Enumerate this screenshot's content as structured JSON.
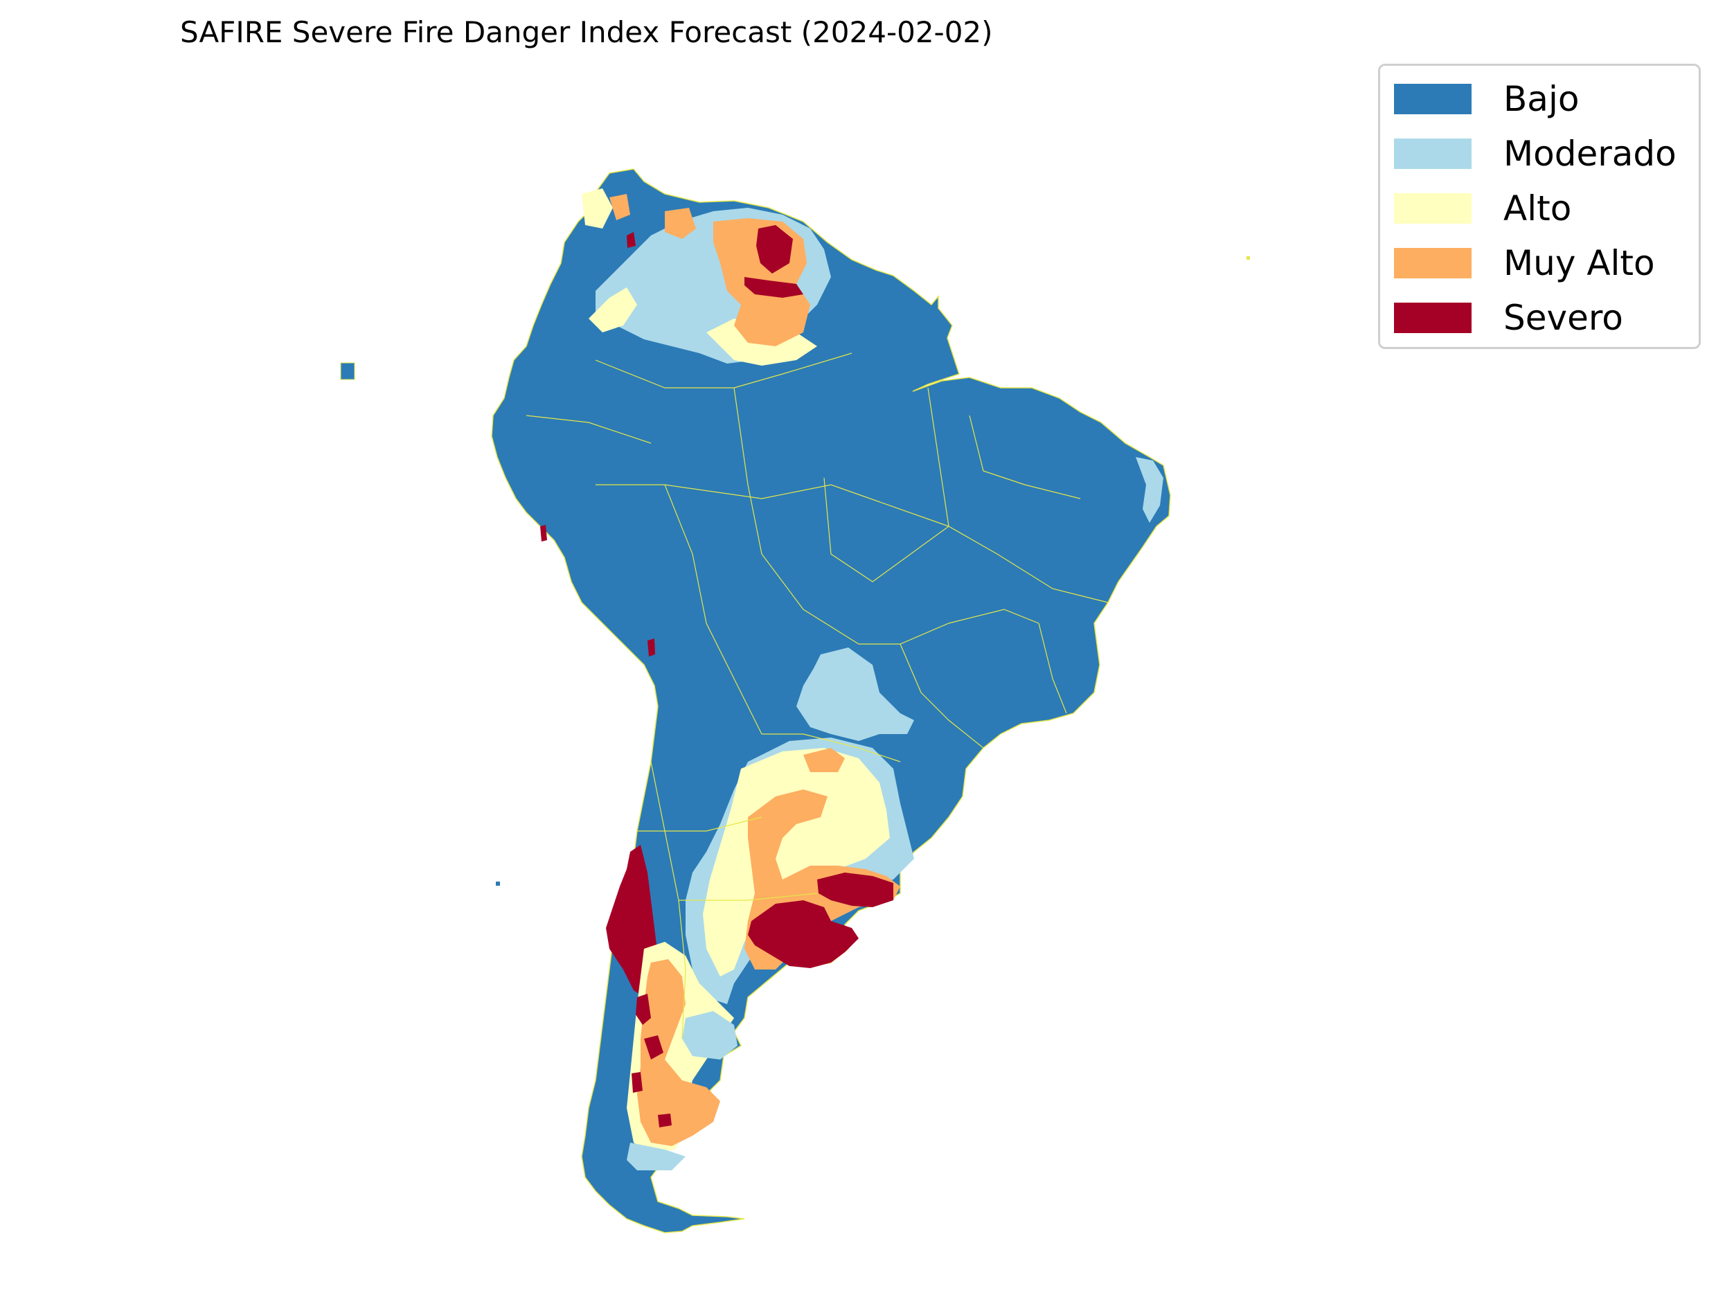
{
  "title": "SAFIRE Severe Fire Danger Index Forecast (2024-02-02)",
  "legend": {
    "items": [
      {
        "label": "Bajo",
        "color": "#2c7bb6"
      },
      {
        "label": "Moderado",
        "color": "#abd9e9"
      },
      {
        "label": "Alto",
        "color": "#ffffbf"
      },
      {
        "label": "Muy Alto",
        "color": "#fdae61"
      },
      {
        "label": "Severo",
        "color": "#a50026"
      }
    ]
  },
  "colors": {
    "border": "#e6e64a",
    "background": "#ffffff"
  }
}
